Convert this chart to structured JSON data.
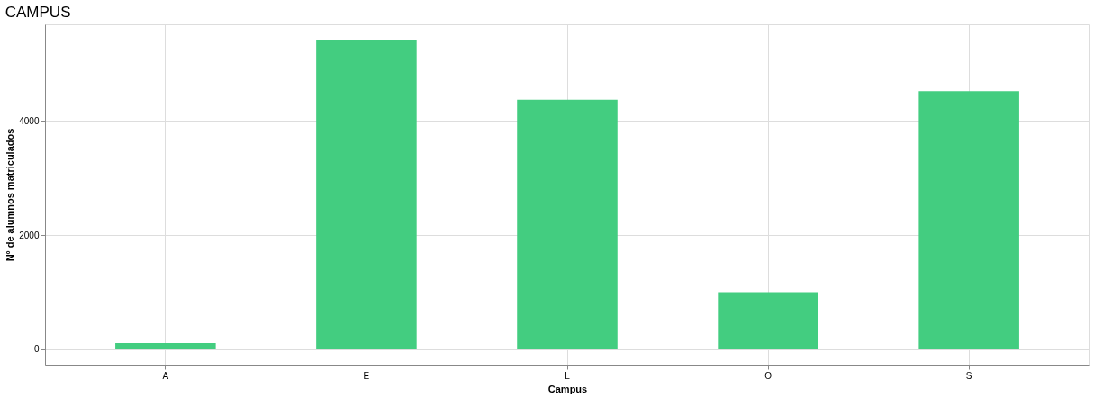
{
  "chart_data": {
    "type": "bar",
    "title": "CAMPUS",
    "xlabel": "Campus",
    "ylabel": "Nº de alumnos matriculados",
    "categories": [
      "A",
      "E",
      "L",
      "O",
      "S"
    ],
    "values": [
      110,
      5420,
      4370,
      1000,
      4520
    ],
    "color": "#43cd80",
    "ylim": [
      -270,
      5690
    ],
    "yticks": [
      0,
      2000,
      4000
    ],
    "grid": true
  }
}
